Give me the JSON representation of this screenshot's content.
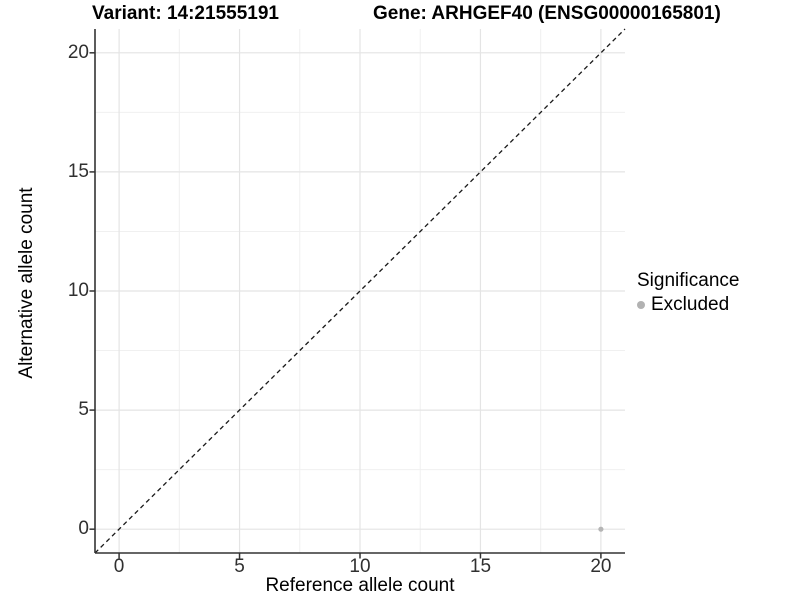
{
  "titles": {
    "left": "Variant: 14:21555191",
    "right": "Gene: ARHGEF40 (ENSG00000165801)"
  },
  "chart_data": {
    "type": "scatter",
    "xlabel": "Reference allele count",
    "ylabel": "Alternative allele count",
    "xlim": [
      -1,
      21
    ],
    "ylim": [
      -1,
      21
    ],
    "x_ticks": [
      0,
      5,
      10,
      15,
      20
    ],
    "y_ticks": [
      0,
      5,
      10,
      15,
      20
    ],
    "x_minor_ticks": [
      2.5,
      7.5,
      12.5,
      17.5
    ],
    "y_minor_ticks": [
      2.5,
      7.5,
      12.5,
      17.5
    ],
    "grid": true,
    "identity_line": {
      "style": "dashed",
      "from": [
        -1,
        -1
      ],
      "to": [
        21,
        21
      ],
      "color": "#1a1a1a"
    },
    "series": [
      {
        "name": "Excluded",
        "color": "#b5b5b5",
        "points": [
          {
            "x": 20,
            "y": 0
          }
        ]
      }
    ],
    "legend": {
      "title": "Significance",
      "position": "right",
      "items": [
        {
          "label": "Excluded",
          "color": "#b2b2b2"
        }
      ]
    }
  },
  "colors": {
    "background": "#ffffff",
    "grid_major": "#e4e4e4",
    "grid_minor": "#f0f0f0",
    "axis_line": "#333333",
    "tick_label": "#303030",
    "point": "#b5b5b5"
  }
}
